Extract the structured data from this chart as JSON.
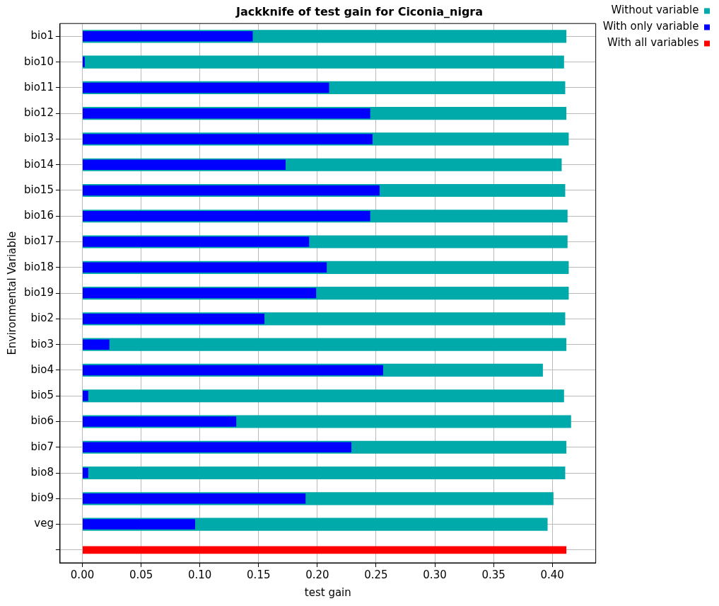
{
  "chart_data": {
    "type": "bar",
    "orientation": "horizontal",
    "title": "Jackknife of test gain for Ciconia_nigra",
    "xlabel": "test gain",
    "ylabel": "Environmental Variable",
    "categories": [
      "bio1",
      "bio10",
      "bio11",
      "bio12",
      "bio13",
      "bio14",
      "bio15",
      "bio16",
      "bio17",
      "bio18",
      "bio19",
      "bio2",
      "bio3",
      "bio4",
      "bio5",
      "bio6",
      "bio7",
      "bio8",
      "bio9",
      "veg",
      null
    ],
    "series": [
      {
        "name": "Without variable",
        "color": "#00aaaa",
        "values": [
          0.412,
          0.41,
          0.411,
          0.412,
          0.414,
          0.408,
          0.411,
          0.413,
          0.413,
          0.414,
          0.414,
          0.411,
          0.412,
          0.392,
          0.41,
          0.416,
          0.412,
          0.411,
          0.401,
          0.396,
          null
        ]
      },
      {
        "name": "With only variable",
        "color": "#0000ff",
        "values": [
          0.145,
          0.002,
          0.21,
          0.245,
          0.247,
          0.173,
          0.253,
          0.245,
          0.193,
          0.208,
          0.199,
          0.155,
          0.023,
          0.256,
          0.005,
          0.131,
          0.229,
          0.005,
          0.19,
          0.096,
          null
        ]
      },
      {
        "name": "With all variables",
        "color": "#ff0000",
        "values": [
          null,
          null,
          null,
          null,
          null,
          null,
          null,
          null,
          null,
          null,
          null,
          null,
          null,
          null,
          null,
          null,
          null,
          null,
          null,
          null,
          0.412
        ]
      }
    ],
    "xlim": [
      -0.019,
      0.437
    ],
    "xticks": [
      {
        "value": 0,
        "label": "0.00"
      },
      {
        "value": 0.05,
        "label": "0.05"
      },
      {
        "value": 0.1,
        "label": "0.10"
      },
      {
        "value": 0.15,
        "label": "0.15"
      },
      {
        "value": 0.2,
        "label": "0.20"
      },
      {
        "value": 0.25,
        "label": "0.25"
      },
      {
        "value": 0.3,
        "label": "0.30"
      },
      {
        "value": 0.35,
        "label": "0.35"
      },
      {
        "value": 0.4,
        "label": "0.40"
      }
    ],
    "grid": true,
    "legend": "top right"
  }
}
